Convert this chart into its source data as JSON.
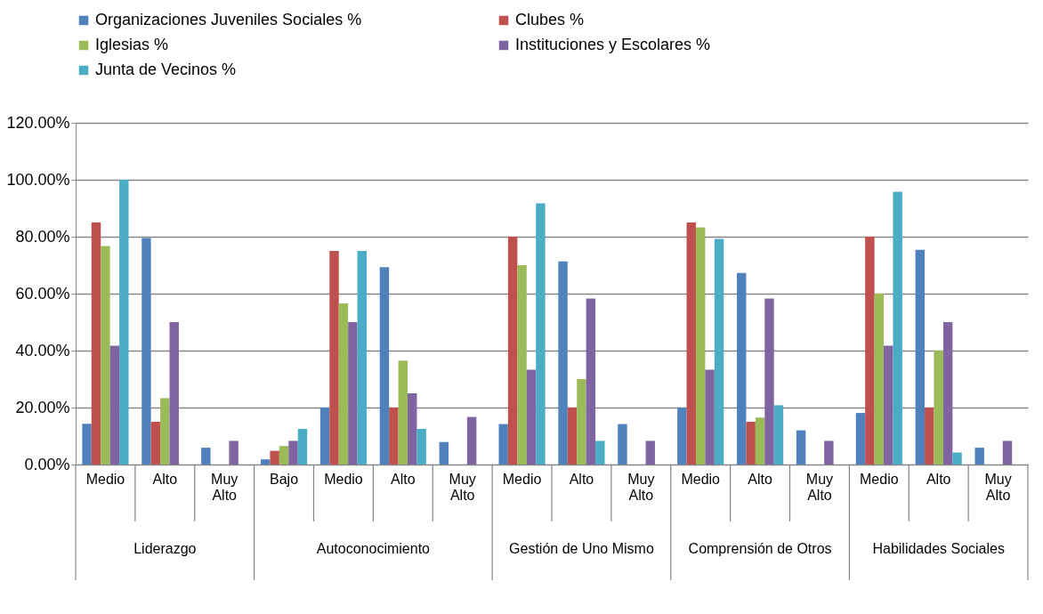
{
  "chart_data": {
    "type": "bar",
    "categories": [
      "Medio",
      "Alto",
      "Muy Alto",
      "Bajo",
      "Medio",
      "Alto",
      "Muy Alto",
      "Medio",
      "Alto",
      "Muy Alto",
      "Medio",
      "Alto",
      "Muy Alto",
      "Medio",
      "Alto",
      "Muy Alto"
    ],
    "series": [
      {
        "name": "Organizaciones Juveniles Sociales %",
        "color": "#4f81bd",
        "values": [
          14.3,
          79.5,
          5.9,
          1.8,
          20,
          69.3,
          7.9,
          14.2,
          71.3,
          14.2,
          20,
          67.3,
          12,
          18.1,
          75.4,
          5.9
        ]
      },
      {
        "name": "Clubes %",
        "color": "#c0504d",
        "values": [
          85,
          15,
          null,
          4.8,
          75,
          20,
          null,
          80,
          20,
          null,
          85,
          15,
          null,
          80,
          20,
          null
        ]
      },
      {
        "name": "Iglesias %",
        "color": "#9bbb59",
        "values": [
          76.7,
          23.3,
          null,
          6.5,
          56.6,
          36.5,
          null,
          70,
          30,
          null,
          83.3,
          16.5,
          null,
          60,
          40,
          null
        ]
      },
      {
        "name": "Instituciones y Escolares %",
        "color": "#8064a2",
        "values": [
          41.7,
          50,
          8.3,
          8.3,
          50,
          25,
          16.7,
          33.3,
          58.3,
          8.3,
          33.3,
          58.3,
          8.3,
          41.7,
          50,
          8.3
        ]
      },
      {
        "name": "Junta de Vecinos %",
        "color": "#4bacc6",
        "values": [
          100,
          null,
          null,
          12.5,
          75,
          12.5,
          null,
          91.7,
          8.3,
          null,
          79.2,
          20.8,
          null,
          95.8,
          4.2,
          null
        ]
      }
    ],
    "ylim": [
      0,
      120
    ],
    "yticks": [
      {
        "value": 0,
        "label": "0.00%"
      },
      {
        "value": 20,
        "label": "20.00%"
      },
      {
        "value": 40,
        "label": "40.00%"
      },
      {
        "value": 60,
        "label": "60.00%"
      },
      {
        "value": 80,
        "label": "80.00%"
      },
      {
        "value": 100,
        "label": "100.00%"
      },
      {
        "value": 120,
        "label": "120.00%"
      }
    ],
    "grid": "y",
    "legend": "top",
    "annotations": [
      "Liderazgo",
      "Autoconocimiento",
      "Gestión de Uno Mismo",
      "Comprensión de Otros",
      "Habilidades Sociales"
    ]
  }
}
